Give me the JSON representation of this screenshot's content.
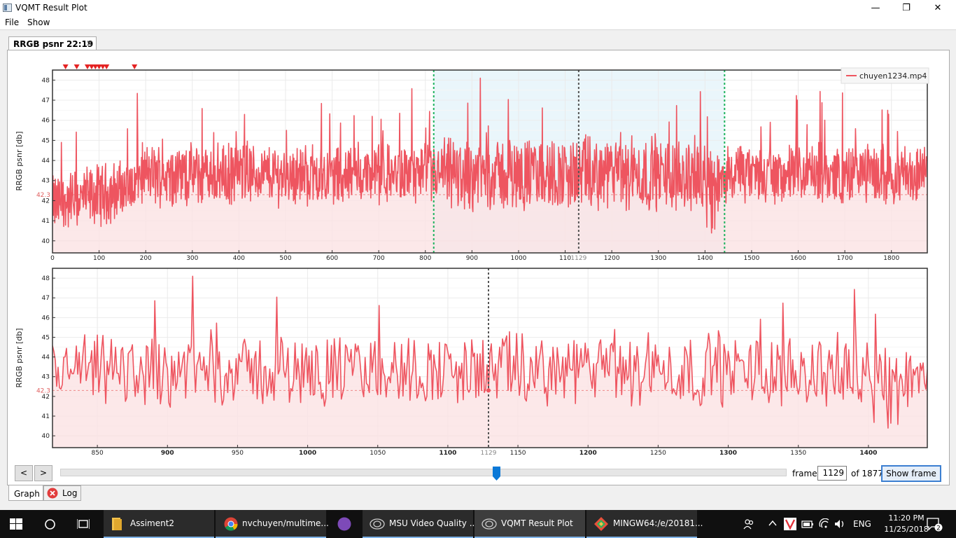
{
  "window": {
    "title": "VQMT Result Plot",
    "minimize": "—",
    "maximize": "❐",
    "close": "✕"
  },
  "menu": [
    {
      "label": "File"
    },
    {
      "label": "Show"
    }
  ],
  "doc_tab": {
    "label": "RRGB psnr 22:19",
    "close": "✕"
  },
  "plot_top": {
    "ylabel": "RRGB psnr [db]",
    "y_ticks": [
      "48",
      "47",
      "46",
      "45",
      "44",
      "43",
      "42",
      "41",
      "40"
    ],
    "x_ticks": [
      "0",
      "100",
      "200",
      "300",
      "400",
      "500",
      "600",
      "700",
      "800",
      "900",
      "1000",
      "110",
      "1200",
      "1300",
      "1400",
      "1500",
      "1600",
      "1700",
      "1800"
    ],
    "cursor_label": "1129",
    "mean_label": "42.3",
    "legend": "chuyen1234.mp4",
    "selection": {
      "start": 818,
      "end": 1442
    }
  },
  "plot_bottom": {
    "ylabel": "RRGB psnr [db]",
    "y_ticks": [
      "48",
      "47",
      "46",
      "45",
      "44",
      "43",
      "42",
      "41",
      "40"
    ],
    "x_ticks": [
      "850",
      "900",
      "950",
      "1000",
      "1050",
      "1100",
      "1150",
      "1200",
      "1250",
      "1300",
      "1350",
      "1400"
    ],
    "cursor_label": "1129",
    "mean_label": "42.3"
  },
  "chart_data": [
    {
      "type": "line",
      "ylabel": "RRGB psnr [db]",
      "xlim": [
        0,
        1877
      ],
      "ylim": [
        39.4,
        48.5
      ],
      "series": [
        {
          "name": "chuyen1234.mp4",
          "color": "#ee5560"
        }
      ],
      "mean": 42.3,
      "cursor_frame": 1129,
      "selection": [
        818,
        1442
      ],
      "markers_frames": [
        28,
        52,
        75,
        84,
        92,
        100,
        108,
        116,
        176
      ],
      "samples_note_values": [
        41.8,
        42.5,
        41.6,
        44.6,
        44.2,
        44.7,
        43.4,
        44.3,
        44.8,
        43.6,
        44.2,
        43.9,
        43.1,
        44.5,
        44.1,
        43.8,
        44.6,
        43.6,
        43.9,
        44.2
      ]
    },
    {
      "type": "line",
      "ylabel": "RRGB psnr [db]",
      "xlim": [
        818,
        1442
      ],
      "ylim": [
        39.4,
        48.5
      ],
      "series": [
        {
          "name": "chuyen1234.mp4",
          "color": "#ee5560"
        }
      ],
      "mean": 42.3,
      "cursor_frame": 1129
    }
  ],
  "controls": {
    "prev": "<",
    "next": ">",
    "frame_label": "frame",
    "frame_value": "1129",
    "of_label": "of 1877",
    "show_frame": "Show frame"
  },
  "bottom_tabs": {
    "graph": "Graph",
    "log": "Log"
  },
  "taskbar": {
    "items": [
      {
        "label": "Assiment2"
      },
      {
        "label": "nvchuyen/multime..."
      },
      {
        "label": ""
      },
      {
        "label": "MSU Video Quality ..."
      },
      {
        "label": "VQMT Result Plot"
      },
      {
        "label": "MINGW64:/e/20181..."
      }
    ],
    "lang": "ENG",
    "time": "11:20 PM",
    "date": "11/25/2018",
    "notifications": "2"
  }
}
